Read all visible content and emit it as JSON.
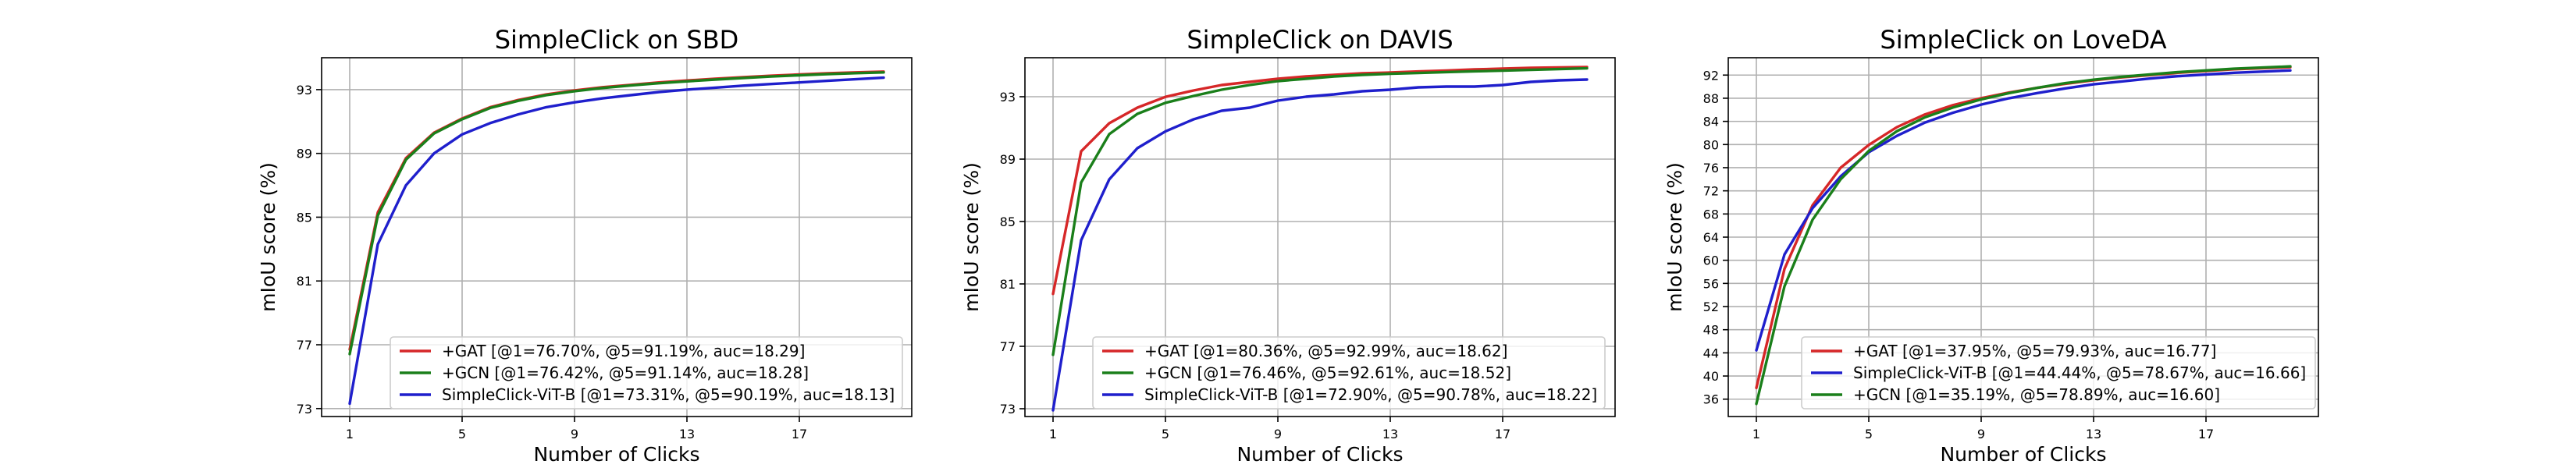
{
  "chart_data": [
    {
      "type": "line",
      "title": "SimpleClick on SBD",
      "xlabel": "Number of Clicks",
      "ylabel": "mIoU score (%)",
      "xlim": [
        0.0,
        21.0
      ],
      "ylim": [
        72.5,
        95.0
      ],
      "xticks": [
        1,
        5,
        9,
        13,
        17
      ],
      "yticks": [
        73,
        77,
        81,
        85,
        89,
        93
      ],
      "grid": true,
      "legend_location": "lower-right",
      "x": [
        1,
        2,
        3,
        4,
        5,
        6,
        7,
        8,
        9,
        10,
        11,
        12,
        13,
        14,
        15,
        16,
        17,
        18,
        19,
        20
      ],
      "series": [
        {
          "name": "+GAT [@1=76.70%, @5=91.19%, auc=18.29]",
          "color": "#d62728",
          "values": [
            76.7,
            85.3,
            88.7,
            90.3,
            91.19,
            91.9,
            92.35,
            92.7,
            92.95,
            93.15,
            93.3,
            93.45,
            93.57,
            93.68,
            93.78,
            93.87,
            93.95,
            94.02,
            94.08,
            94.13
          ]
        },
        {
          "name": "+GCN [@1=76.42%, @5=91.14%, auc=18.28]",
          "color": "#1a7f1a",
          "values": [
            76.42,
            85.1,
            88.6,
            90.25,
            91.14,
            91.85,
            92.3,
            92.65,
            92.9,
            93.1,
            93.26,
            93.4,
            93.52,
            93.63,
            93.73,
            93.82,
            93.9,
            93.97,
            94.03,
            94.08
          ]
        },
        {
          "name": "SimpleClick-ViT-B [@1=73.31%, @5=90.19%, auc=18.13]",
          "color": "#1f1fcc",
          "values": [
            73.31,
            83.3,
            87.0,
            89.0,
            90.19,
            90.9,
            91.45,
            91.9,
            92.2,
            92.45,
            92.65,
            92.85,
            93.0,
            93.12,
            93.25,
            93.35,
            93.45,
            93.55,
            93.65,
            93.75
          ]
        }
      ]
    },
    {
      "type": "line",
      "title": "SimpleClick on DAVIS",
      "xlabel": "Number of Clicks",
      "ylabel": "mIoU score (%)",
      "xlim": [
        0.0,
        21.0
      ],
      "ylim": [
        72.5,
        95.5
      ],
      "xticks": [
        1,
        5,
        9,
        13,
        17
      ],
      "yticks": [
        73,
        77,
        81,
        85,
        89,
        93
      ],
      "grid": true,
      "legend_location": "lower-right",
      "x": [
        1,
        2,
        3,
        4,
        5,
        6,
        7,
        8,
        9,
        10,
        11,
        12,
        13,
        14,
        15,
        16,
        17,
        18,
        19,
        20
      ],
      "series": [
        {
          "name": "+GAT [@1=80.36%, @5=92.99%, auc=18.62]",
          "color": "#d62728",
          "values": [
            80.36,
            89.5,
            91.3,
            92.3,
            92.99,
            93.4,
            93.75,
            93.95,
            94.15,
            94.3,
            94.4,
            94.5,
            94.55,
            94.62,
            94.68,
            94.75,
            94.8,
            94.85,
            94.88,
            94.9
          ]
        },
        {
          "name": "+GCN [@1=76.46%, @5=92.61%, auc=18.52]",
          "color": "#1a7f1a",
          "values": [
            76.46,
            87.5,
            90.6,
            91.9,
            92.61,
            93.05,
            93.45,
            93.75,
            94.0,
            94.15,
            94.3,
            94.4,
            94.47,
            94.52,
            94.58,
            94.63,
            94.67,
            94.72,
            94.77,
            94.82
          ]
        },
        {
          "name": "SimpleClick-ViT-B [@1=72.90%, @5=90.78%, auc=18.22]",
          "color": "#1f1fcc",
          "values": [
            72.9,
            83.8,
            87.7,
            89.7,
            90.78,
            91.55,
            92.1,
            92.3,
            92.75,
            93.0,
            93.15,
            93.35,
            93.45,
            93.6,
            93.65,
            93.65,
            93.75,
            93.95,
            94.05,
            94.1
          ]
        }
      ]
    },
    {
      "type": "line",
      "title": "SimpleClick on LoveDA",
      "xlabel": "Number of Clicks",
      "ylabel": "mIoU score (%)",
      "xlim": [
        0.0,
        21.0
      ],
      "ylim": [
        33.0,
        95.0
      ],
      "xticks": [
        1,
        5,
        9,
        13,
        17
      ],
      "yticks": [
        36,
        40,
        44,
        48,
        52,
        56,
        60,
        64,
        68,
        72,
        76,
        80,
        84,
        88,
        92
      ],
      "grid": true,
      "legend_location": "lower-right",
      "x": [
        1,
        2,
        3,
        4,
        5,
        6,
        7,
        8,
        9,
        10,
        11,
        12,
        13,
        14,
        15,
        16,
        17,
        18,
        19,
        20
      ],
      "series": [
        {
          "name": "+GAT [@1=37.95%, @5=79.93%, auc=16.77]",
          "color": "#d62728",
          "values": [
            37.95,
            58.5,
            69.5,
            76.0,
            79.93,
            83.0,
            85.2,
            86.8,
            88.0,
            89.0,
            89.8,
            90.5,
            91.1,
            91.6,
            92.0,
            92.4,
            92.7,
            93.0,
            93.2,
            93.35
          ]
        },
        {
          "name": "SimpleClick-ViT-B [@1=44.44%, @5=78.67%, auc=16.66]",
          "color": "#1f1fcc",
          "values": [
            44.44,
            61.0,
            69.0,
            74.5,
            78.67,
            81.5,
            83.8,
            85.5,
            86.9,
            88.0,
            88.9,
            89.7,
            90.4,
            90.9,
            91.4,
            91.8,
            92.1,
            92.4,
            92.6,
            92.8
          ]
        },
        {
          "name": "+GCN [@1=35.19%, @5=78.89%, auc=16.60]",
          "color": "#1a7f1a",
          "values": [
            35.19,
            55.5,
            67.0,
            74.0,
            78.89,
            82.3,
            84.7,
            86.4,
            87.8,
            88.9,
            89.8,
            90.6,
            91.2,
            91.7,
            92.1,
            92.5,
            92.8,
            93.1,
            93.3,
            93.5
          ]
        }
      ]
    }
  ]
}
